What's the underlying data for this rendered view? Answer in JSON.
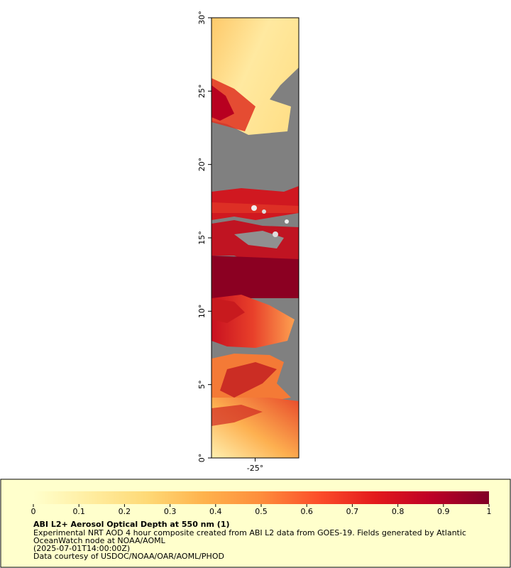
{
  "chart_data": {
    "type": "map",
    "title": "ABI L2+ Aerosol Optical Depth at 550 nm (1)",
    "caption_lines": [
      "Experimental NRT AOD 4 hour composite created from ABI L2 data from GOES-19. Fields generated by Atlantic",
      "OceanWatch node at NOAA/AOML",
      "(2025-07-01T14:00:00Z)",
      "Data courtesy of USDOC/NOAA/OAR/AOML/PHOD"
    ],
    "ylim": [
      0,
      30
    ],
    "yticks": [
      {
        "value": 0,
        "label": "0°"
      },
      {
        "value": 5,
        "label": "5°"
      },
      {
        "value": 10,
        "label": "10°"
      },
      {
        "value": 15,
        "label": "15°"
      },
      {
        "value": 20,
        "label": "20°"
      },
      {
        "value": 25,
        "label": "25°"
      },
      {
        "value": 30,
        "label": "30°"
      }
    ],
    "xlim": [
      -28,
      -22
    ],
    "xticks": [
      {
        "value": -25,
        "label": "-25°"
      }
    ],
    "colorbar": {
      "lim": [
        0,
        1
      ],
      "ticks": [
        0,
        0.1,
        0.2,
        0.3,
        0.4,
        0.5,
        0.6,
        0.7,
        0.8,
        0.9,
        1
      ],
      "colors": [
        "#ffffcc",
        "#ffeda0",
        "#fed976",
        "#feb24c",
        "#fd8d3c",
        "#fc4e2a",
        "#e31a1c",
        "#bd0026",
        "#800026"
      ]
    }
  }
}
